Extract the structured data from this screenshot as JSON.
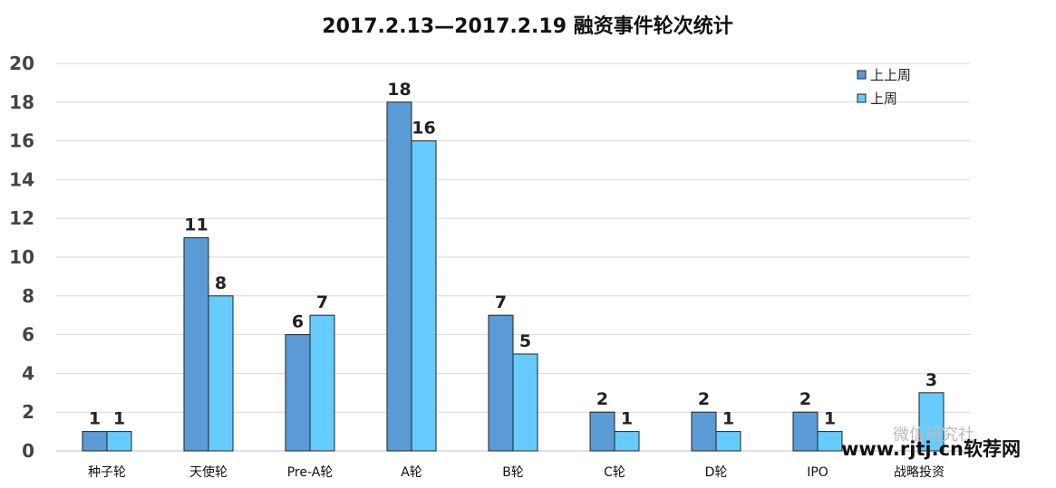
{
  "chart_data": {
    "type": "bar",
    "title": "2017.2.13—2017.2.19  融资事件轮次统计",
    "xlabel": "",
    "ylabel": "",
    "categories": [
      "种子轮",
      "天使轮",
      "Pre-A轮",
      "A轮",
      "B轮",
      "C轮",
      "D轮",
      "IPO",
      "战略投资"
    ],
    "series": [
      {
        "name": "上上周",
        "color": "#5b9bd5",
        "values": [
          1,
          11,
          6,
          18,
          7,
          2,
          2,
          2,
          0
        ],
        "labels": [
          "1",
          "11",
          "6",
          "18",
          "7",
          "2",
          "2",
          "2",
          ""
        ]
      },
      {
        "name": "上周",
        "color": "#66ccff",
        "values": [
          1,
          8,
          7,
          16,
          5,
          1,
          1,
          1,
          3
        ],
        "labels": [
          "1",
          "8",
          "7",
          "16",
          "5",
          "1",
          "1",
          "1",
          "3"
        ]
      }
    ],
    "ylim": [
      0,
      20
    ],
    "yticks": [
      "0",
      "2",
      "4",
      "6",
      "8",
      "10",
      "12",
      "14",
      "16",
      "18",
      "20"
    ],
    "grid": true,
    "legend_position": "top-right"
  },
  "watermark": {
    "text": "www.rjtj.cn软荐网",
    "background_text": "微信研究社"
  }
}
